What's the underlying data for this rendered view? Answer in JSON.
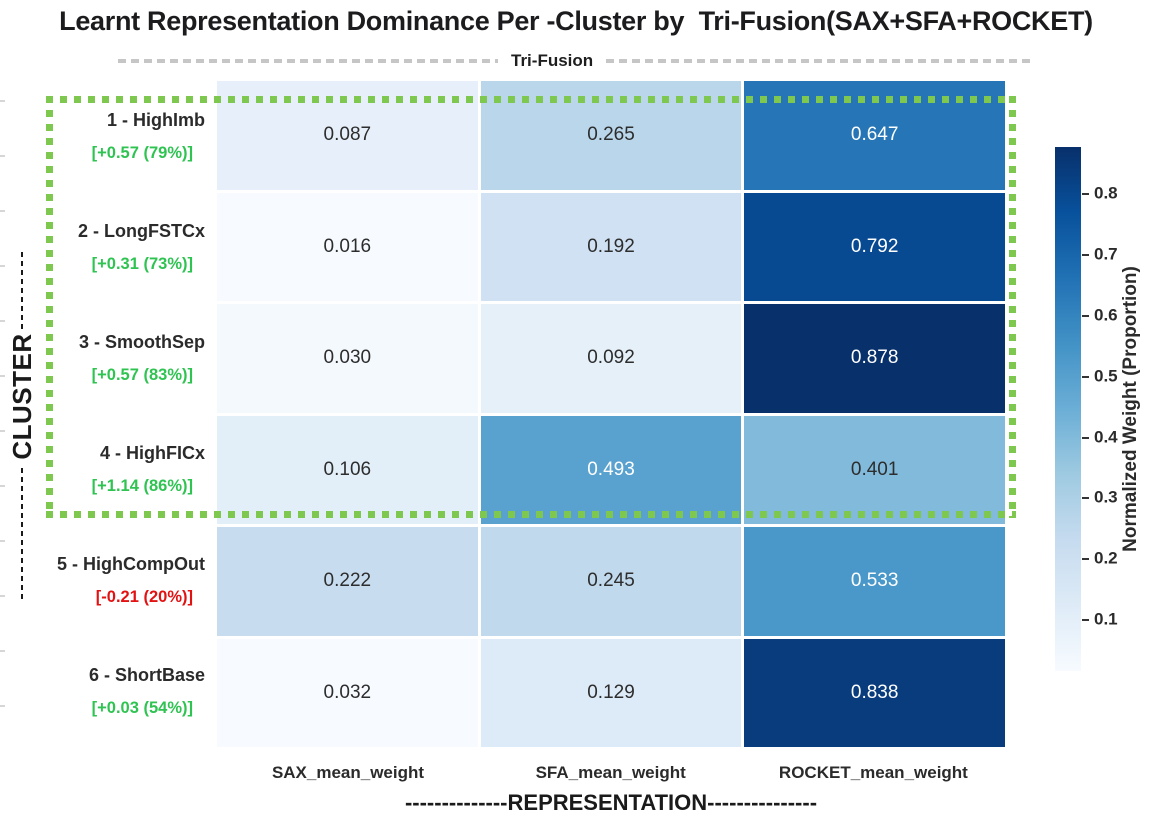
{
  "title": "Learnt Representation Dominance Per -Cluster by  Tri-Fusion(SAX+SFA+ROCKET)",
  "fusion_band": {
    "label": "Tri-Fusion"
  },
  "y_axis": {
    "label": "CLUSTER"
  },
  "x_axis": {
    "label_with_dashes": "--------------REPRESENTATION---------------"
  },
  "chart_data": {
    "type": "heatmap",
    "title": "Learnt Representation Dominance Per -Cluster by Tri-Fusion(SAX+SFA+ROCKET)",
    "columns": [
      "SAX_mean_weight",
      "SFA_mean_weight",
      "ROCKET_mean_weight"
    ],
    "rows": [
      {
        "label": "1 - HighImb",
        "annotation": "[+0.57 (79%)]",
        "annotation_color": "#2fc352",
        "values": [
          0.087,
          0.265,
          0.647
        ],
        "cell_colors": [
          "#E7F0FA",
          "#BAD6EB",
          "#2676B7"
        ],
        "text_colors": [
          "#2d2d2d",
          "#2d2d2d",
          "#ffffff"
        ]
      },
      {
        "label": "2 - LongFSTCx",
        "annotation": "[+0.31 (73%)]",
        "annotation_color": "#2fc352",
        "values": [
          0.016,
          0.192,
          0.792
        ],
        "cell_colors": [
          "#F7FBFF",
          "#CFE1F2",
          "#084A92"
        ],
        "text_colors": [
          "#2d2d2d",
          "#2d2d2d",
          "#ffffff"
        ]
      },
      {
        "label": "3 - SmoothSep",
        "annotation": "[+0.57 (83%)]",
        "annotation_color": "#2fc352",
        "values": [
          0.03,
          0.092,
          0.878
        ],
        "cell_colors": [
          "#F4F9FE",
          "#E5F0F9",
          "#08306B"
        ],
        "text_colors": [
          "#2d2d2d",
          "#2d2d2d",
          "#ffffff"
        ]
      },
      {
        "label": "4 - HighFICx",
        "annotation": "[+1.14 (86%)]",
        "annotation_color": "#2fc352",
        "values": [
          0.106,
          0.493,
          0.401
        ],
        "cell_colors": [
          "#E2EEF8",
          "#59A2CF",
          "#81BADB"
        ],
        "text_colors": [
          "#2d2d2d",
          "#ffffff",
          "#2d2d2d"
        ]
      },
      {
        "label": "5 - HighCompOut",
        "annotation": "[-0.21 (20%)]",
        "annotation_color": "#e31212",
        "values": [
          0.222,
          0.245,
          0.533
        ],
        "cell_colors": [
          "#C8DCF0",
          "#C1D9ED",
          "#4A98C9"
        ],
        "text_colors": [
          "#2d2d2d",
          "#2d2d2d",
          "#ffffff"
        ]
      },
      {
        "label": "6 - ShortBase",
        "annotation": "[+0.03 (54%)]",
        "annotation_color": "#2fc352",
        "values": [
          0.032,
          0.129,
          0.838
        ],
        "cell_colors": [
          "#F7FAFF",
          "#DDEAF7",
          "#083C7D"
        ],
        "text_colors": [
          "#2d2d2d",
          "#2d2d2d",
          "#ffffff"
        ]
      }
    ],
    "colorbar": {
      "label": "Normalized Weight (Proportion)",
      "vmin": 0.016,
      "vmax": 0.878,
      "ticks": [
        0.8,
        0.7,
        0.6,
        0.5,
        0.4,
        0.3,
        0.2,
        0.1
      ],
      "gradient_stops": [
        "#F7FBFF",
        "#DEEBF7",
        "#C6DBEF",
        "#9ECAE1",
        "#6BAED6",
        "#4292C6",
        "#2171B5",
        "#08519C",
        "#08306B"
      ]
    },
    "highlight_box": {
      "rows_covered": "1-4",
      "color": "#7EC850"
    },
    "legend_position": "right",
    "value_format": "0.000"
  },
  "colors": {
    "positive_annotation": "#2fc352",
    "negative_annotation": "#e31212",
    "highlight_green": "#7EC850",
    "title_color": "#1c1c1e"
  }
}
